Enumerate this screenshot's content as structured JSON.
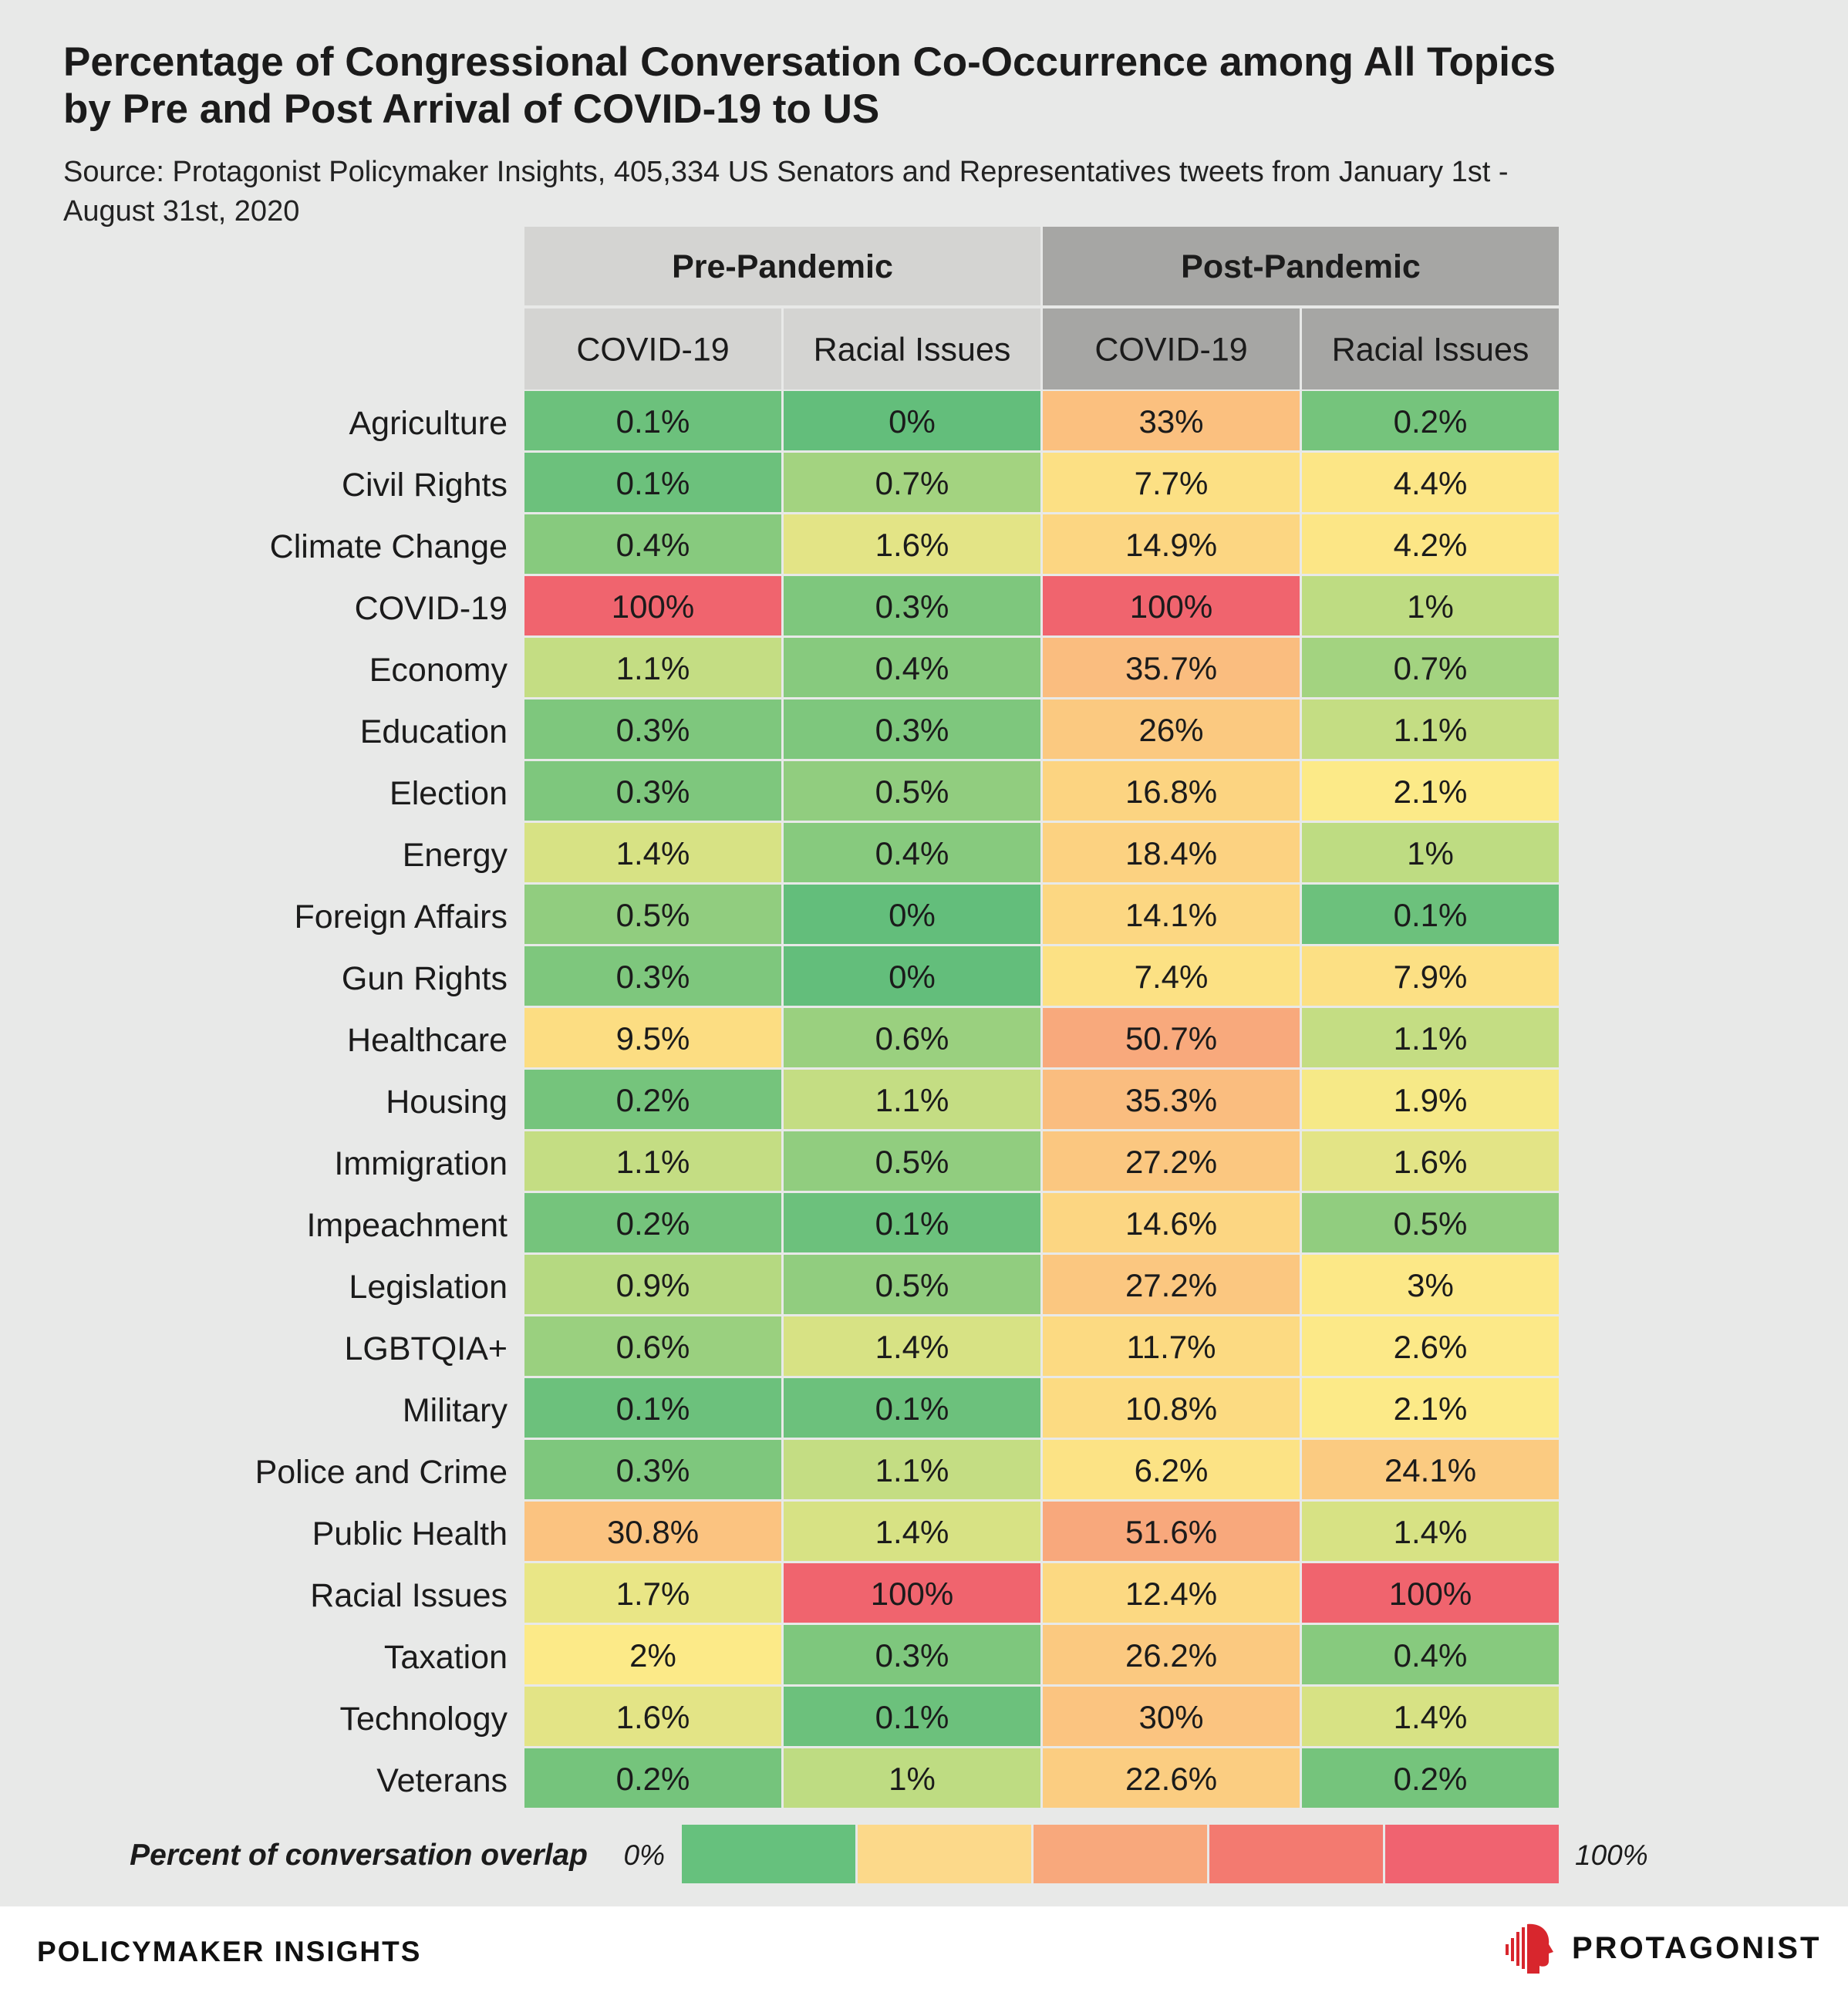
{
  "title_line1": "Percentage of Congressional Conversation Co-Occurrence among All Topics",
  "title_line2": "by Pre and Post Arrival of COVID-19 to US",
  "subtitle_line1": "Source: Protagonist Policymaker Insights, 405,334 US Senators and Representatives tweets from January 1st -",
  "subtitle_line2": "August 31st, 2020",
  "chart_data": {
    "type": "heatmap",
    "groups": [
      {
        "label": "Pre-Pandemic",
        "color": "#d4d4d2",
        "columns": [
          "COVID-19",
          "Racial Issues"
        ]
      },
      {
        "label": "Post-Pandemic",
        "color": "#a6a6a4",
        "columns": [
          "COVID-19",
          "Racial Issues"
        ]
      }
    ],
    "rows": [
      {
        "topic": "Agriculture",
        "values": [
          "0.1%",
          "0%",
          "33%",
          "0.2%"
        ]
      },
      {
        "topic": "Civil Rights",
        "values": [
          "0.1%",
          "0.7%",
          "7.7%",
          "4.4%"
        ]
      },
      {
        "topic": "Climate Change",
        "values": [
          "0.4%",
          "1.6%",
          "14.9%",
          "4.2%"
        ]
      },
      {
        "topic": "COVID-19",
        "values": [
          "100%",
          "0.3%",
          "100%",
          "1%"
        ]
      },
      {
        "topic": "Economy",
        "values": [
          "1.1%",
          "0.4%",
          "35.7%",
          "0.7%"
        ]
      },
      {
        "topic": "Education",
        "values": [
          "0.3%",
          "0.3%",
          "26%",
          "1.1%"
        ]
      },
      {
        "topic": "Election",
        "values": [
          "0.3%",
          "0.5%",
          "16.8%",
          "2.1%"
        ]
      },
      {
        "topic": "Energy",
        "values": [
          "1.4%",
          "0.4%",
          "18.4%",
          "1%"
        ]
      },
      {
        "topic": "Foreign Affairs",
        "values": [
          "0.5%",
          "0%",
          "14.1%",
          "0.1%"
        ]
      },
      {
        "topic": "Gun Rights",
        "values": [
          "0.3%",
          "0%",
          "7.4%",
          "7.9%"
        ]
      },
      {
        "topic": "Healthcare",
        "values": [
          "9.5%",
          "0.6%",
          "50.7%",
          "1.1%"
        ]
      },
      {
        "topic": "Housing",
        "values": [
          "0.2%",
          "1.1%",
          "35.3%",
          "1.9%"
        ]
      },
      {
        "topic": "Immigration",
        "values": [
          "1.1%",
          "0.5%",
          "27.2%",
          "1.6%"
        ]
      },
      {
        "topic": "Impeachment",
        "values": [
          "0.2%",
          "0.1%",
          "14.6%",
          "0.5%"
        ]
      },
      {
        "topic": "Legislation",
        "values": [
          "0.9%",
          "0.5%",
          "27.2%",
          "3%"
        ]
      },
      {
        "topic": "LGBTQIA+",
        "values": [
          "0.6%",
          "1.4%",
          "11.7%",
          "2.6%"
        ]
      },
      {
        "topic": "Military",
        "values": [
          "0.1%",
          "0.1%",
          "10.8%",
          "2.1%"
        ]
      },
      {
        "topic": "Police and Crime",
        "values": [
          "0.3%",
          "1.1%",
          "6.2%",
          "24.1%"
        ]
      },
      {
        "topic": "Public Health",
        "values": [
          "30.8%",
          "1.4%",
          "51.6%",
          "1.4%"
        ]
      },
      {
        "topic": "Racial Issues",
        "values": [
          "1.7%",
          "100%",
          "12.4%",
          "100%"
        ]
      },
      {
        "topic": "Taxation",
        "values": [
          "2%",
          "0.3%",
          "26.2%",
          "0.4%"
        ]
      },
      {
        "topic": "Technology",
        "values": [
          "1.6%",
          "0.1%",
          "30%",
          "1.4%"
        ]
      },
      {
        "topic": "Veterans",
        "values": [
          "0.2%",
          "1%",
          "22.6%",
          "0.2%"
        ]
      }
    ],
    "legend": {
      "label": "Percent of conversation overlap",
      "min_label": "0%",
      "max_label": "100%",
      "colors": [
        "#66c17d",
        "#fcd98a",
        "#f8a87c",
        "#f37a70",
        "#f06370"
      ]
    }
  },
  "footer": {
    "brand": "POLICYMAKER INSIGHTS",
    "logo_text": "PROTAGONIST",
    "logo_icon": "protagonist-head-icon",
    "logo_color": "#d8262d"
  }
}
